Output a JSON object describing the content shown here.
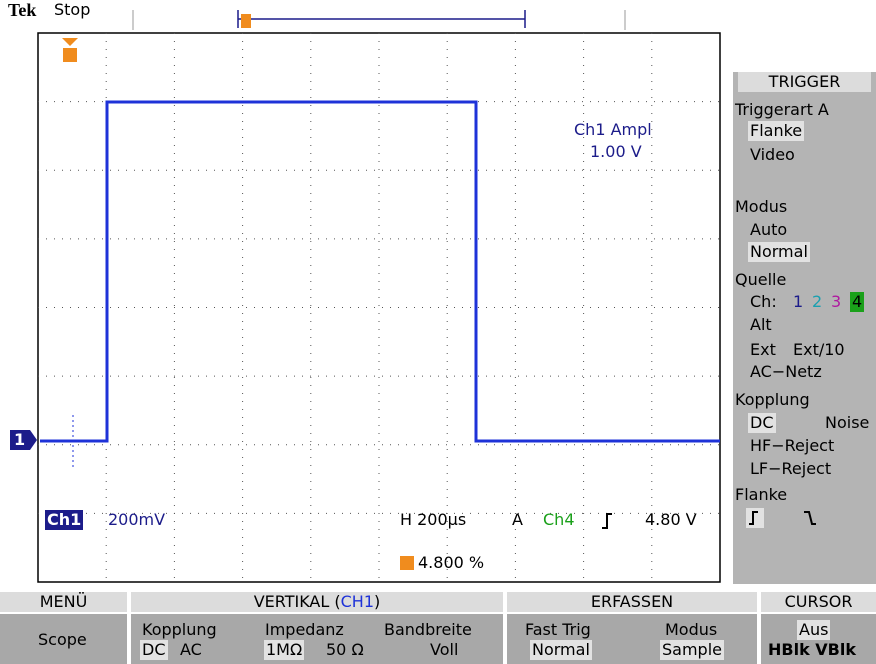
{
  "header": {
    "brand": "Tek",
    "status": "Stop"
  },
  "measurement": {
    "label": "Ch1 Ampl",
    "value": "1.00 V"
  },
  "status_bar": {
    "channel": "Ch1",
    "scale": "200mV",
    "horizontal": "H 200µs",
    "trigger_mode": "A",
    "trigger_source": "Ch4",
    "trigger_level": "4.80 V"
  },
  "trigger_position": "4.800 %",
  "channel_marker": "1",
  "side_menu": {
    "title": "TRIGGER",
    "trigger_type": {
      "label": "Triggerart A",
      "options": [
        "Flanke",
        "Video"
      ]
    },
    "mode": {
      "label": "Modus",
      "options": [
        "Auto",
        "Normal"
      ]
    },
    "source": {
      "label": "Quelle",
      "channel_label": "Ch:",
      "channels": [
        "1",
        "2",
        "3",
        "4"
      ],
      "options": [
        "Alt",
        "Ext",
        "Ext/10",
        "AC−Netz"
      ]
    },
    "coupling": {
      "label": "Kopplung",
      "options": [
        "DC",
        "Noise",
        "HF−Reject",
        "LF−Reject"
      ]
    },
    "slope": {
      "label": "Flanke"
    }
  },
  "bottom_menu": {
    "menu": {
      "title": "MENÜ",
      "item": "Scope"
    },
    "vertical": {
      "title_prefix": "VERTIKAL (",
      "title_channel": "CH1",
      "title_suffix": ")",
      "coupling": {
        "label": "Kopplung",
        "options": [
          "DC",
          "AC"
        ]
      },
      "impedance": {
        "label": "Impedanz",
        "options": [
          "1MΩ",
          "50 Ω"
        ]
      },
      "bandwidth": {
        "label": "Bandbreite",
        "value": "Voll"
      }
    },
    "acquire": {
      "title": "ERFASSEN",
      "fast_trig": {
        "label": "Fast Trig",
        "value": "Normal"
      },
      "mode": {
        "label": "Modus",
        "value": "Sample"
      }
    },
    "cursor": {
      "title": "CURSOR",
      "state": "Aus",
      "options": "HBlk VBlk"
    }
  }
}
